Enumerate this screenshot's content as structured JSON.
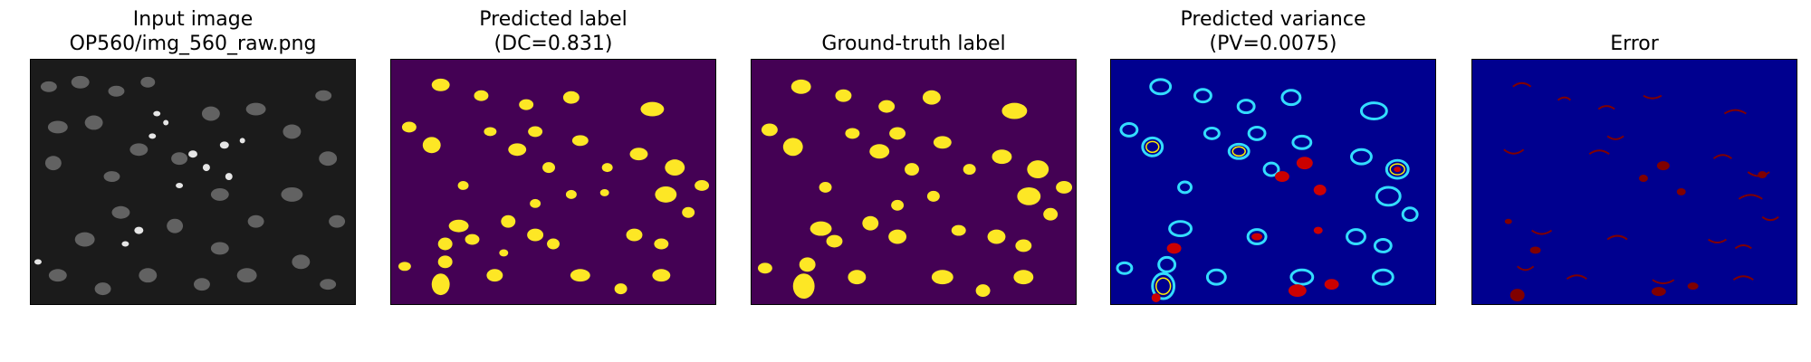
{
  "panels": [
    {
      "id": "input",
      "title": "Input image",
      "subtitle": "OP560/img_560_raw.png",
      "background": "#1a1a1a",
      "fill": "#7a7a7a",
      "highlight": "#f0f0f0"
    },
    {
      "id": "pred",
      "title": "Predicted label",
      "subtitle": "(DC=0.831)",
      "background": "#440154",
      "fill": "#fde725"
    },
    {
      "id": "gt",
      "title": "Ground-truth label",
      "subtitle": "",
      "background": "#440154",
      "fill": "#fde725"
    },
    {
      "id": "var",
      "title": "Predicted variance",
      "subtitle": "(PV=0.0075)",
      "background": "#00008f",
      "fill": "#00ffff",
      "highlight": "#ff1a00"
    },
    {
      "id": "err",
      "title": "Error",
      "subtitle": "",
      "background": "#00008f",
      "fill": "#800000"
    }
  ]
}
